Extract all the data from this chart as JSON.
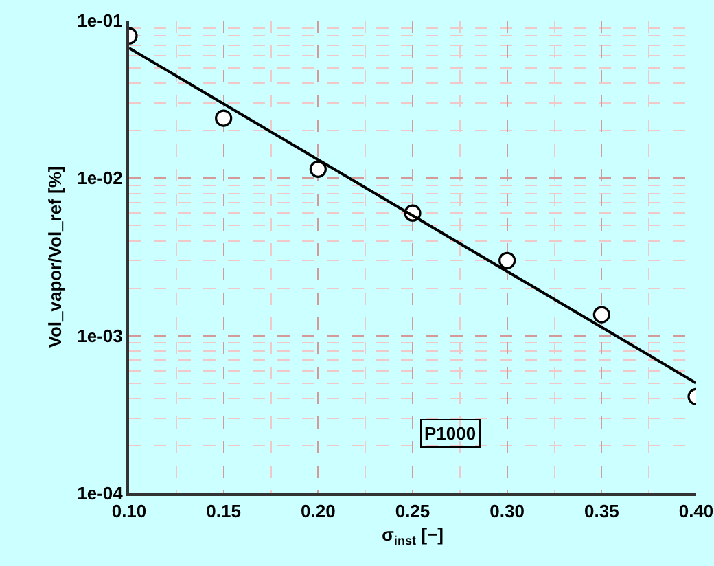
{
  "chart_data": {
    "type": "scatter",
    "xlabel": "σ$_{inst}$ [−]",
    "ylabel": "Vol_vapor/Vol_ref [%]",
    "x": [
      0.1,
      0.15,
      0.2,
      0.25,
      0.3,
      0.35,
      0.4
    ],
    "series": [
      {
        "color": "#000000",
        "marker": "circle",
        "values": [
          0.08,
          0.024,
          0.0114,
          0.006,
          0.003,
          0.00136,
          0.00041
        ]
      },
      {
        "type": "line",
        "color": "#000000",
        "x": [
          0.1,
          0.4
        ],
        "values": [
          0.067,
          0.0005
        ],
        "marker": "none",
        "line_style": "solid"
      }
    ],
    "xlim": [
      0.1,
      0.4
    ],
    "xticks": [
      {
        "value": 0.1,
        "label": "0.10"
      },
      {
        "value": 0.15,
        "label": "0.15"
      },
      {
        "value": 0.2,
        "label": "0.20"
      },
      {
        "value": 0.25,
        "label": "0.25"
      },
      {
        "value": 0.3,
        "label": "0.30"
      },
      {
        "value": 0.35,
        "label": "0.35"
      },
      {
        "value": 0.4,
        "label": "0.40"
      }
    ],
    "ylim": [
      0.0001,
      0.1
    ],
    "yticks": [
      {
        "value": 0.0001,
        "label": "1e-04"
      },
      {
        "value": 0.001,
        "label": "1e-03"
      },
      {
        "value": 0.01,
        "label": "1e-02"
      },
      {
        "value": 0.1,
        "label": "1e-01"
      }
    ],
    "log": "y",
    "grid": true,
    "annotations": [
      {
        "text": "P1000",
        "x": 0.27,
        "y": 0.00024
      }
    ]
  }
}
